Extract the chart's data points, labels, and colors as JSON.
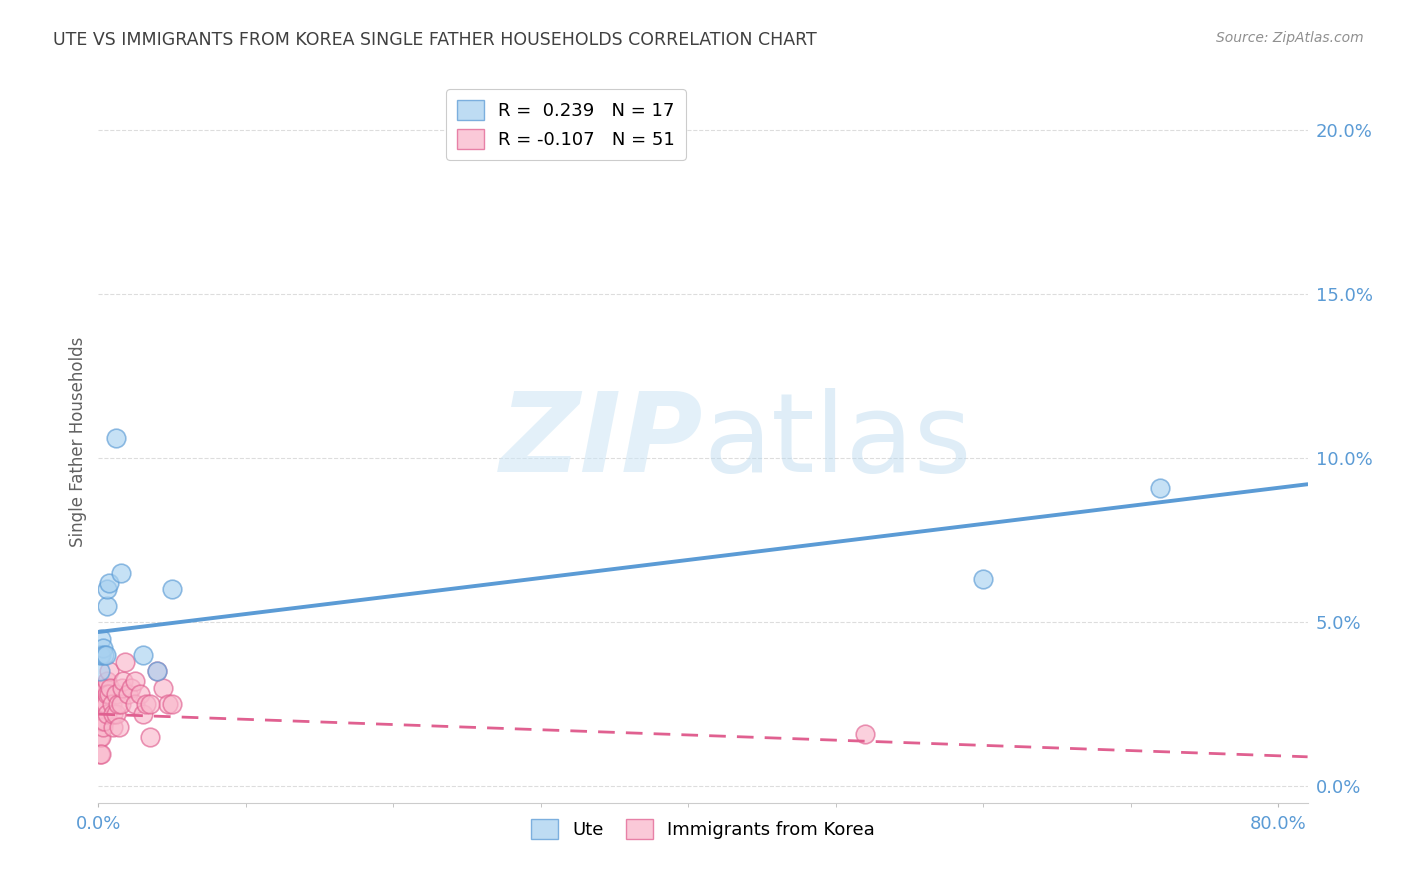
{
  "title": "UTE VS IMMIGRANTS FROM KOREA SINGLE FATHER HOUSEHOLDS CORRELATION CHART",
  "source": "Source: ZipAtlas.com",
  "ylabel": "Single Father Households",
  "xlim": [
    0.0,
    0.82
  ],
  "ylim": [
    -0.005,
    0.215
  ],
  "blue_color": "#a8d1f0",
  "blue_edge_color": "#5b9bd5",
  "blue_line_color": "#5b9bd5",
  "pink_color": "#f9b8cc",
  "pink_edge_color": "#e06090",
  "pink_line_color": "#e06090",
  "legend_r_blue": "R =  0.239",
  "legend_n_blue": "N = 17",
  "legend_r_pink": "R = -0.107",
  "legend_n_pink": "N = 51",
  "ute_x": [
    0.001,
    0.001,
    0.002,
    0.002,
    0.003,
    0.004,
    0.005,
    0.006,
    0.006,
    0.007,
    0.012,
    0.015,
    0.03,
    0.04,
    0.05,
    0.72,
    0.6
  ],
  "ute_y": [
    0.04,
    0.035,
    0.045,
    0.04,
    0.042,
    0.04,
    0.04,
    0.055,
    0.06,
    0.062,
    0.106,
    0.065,
    0.04,
    0.035,
    0.06,
    0.091,
    0.063
  ],
  "korea_x": [
    0.001,
    0.001,
    0.001,
    0.001,
    0.001,
    0.001,
    0.001,
    0.002,
    0.002,
    0.002,
    0.002,
    0.002,
    0.003,
    0.003,
    0.003,
    0.004,
    0.004,
    0.004,
    0.005,
    0.005,
    0.006,
    0.006,
    0.006,
    0.007,
    0.007,
    0.008,
    0.009,
    0.01,
    0.01,
    0.012,
    0.012,
    0.013,
    0.014,
    0.015,
    0.016,
    0.017,
    0.018,
    0.02,
    0.022,
    0.025,
    0.025,
    0.028,
    0.03,
    0.032,
    0.035,
    0.04,
    0.044,
    0.047,
    0.05,
    0.52,
    0.035
  ],
  "korea_y": [
    0.02,
    0.025,
    0.02,
    0.015,
    0.01,
    0.025,
    0.03,
    0.02,
    0.025,
    0.02,
    0.015,
    0.01,
    0.025,
    0.02,
    0.018,
    0.03,
    0.025,
    0.02,
    0.03,
    0.025,
    0.032,
    0.028,
    0.022,
    0.035,
    0.028,
    0.03,
    0.025,
    0.018,
    0.022,
    0.028,
    0.022,
    0.025,
    0.018,
    0.025,
    0.03,
    0.032,
    0.038,
    0.028,
    0.03,
    0.025,
    0.032,
    0.028,
    0.022,
    0.025,
    0.015,
    0.035,
    0.03,
    0.025,
    0.025,
    0.016,
    0.025
  ],
  "blue_trend_x": [
    0.0,
    0.82
  ],
  "blue_trend_y": [
    0.047,
    0.092
  ],
  "pink_trend_x": [
    0.0,
    0.82
  ],
  "pink_trend_y": [
    0.022,
    0.009
  ],
  "ytick_vals": [
    0.0,
    0.05,
    0.1,
    0.15,
    0.2
  ],
  "ytick_labels": [
    "0.0%",
    "5.0%",
    "10.0%",
    "15.0%",
    "20.0%"
  ],
  "xtick_minor": [
    0.0,
    0.1,
    0.2,
    0.3,
    0.4,
    0.5,
    0.6,
    0.7,
    0.8
  ],
  "background_color": "#ffffff",
  "grid_color": "#dddddd",
  "tick_label_color": "#5b9bd5",
  "title_color": "#404040",
  "ylabel_color": "#606060",
  "source_color": "#909090",
  "scatter_size": 180
}
